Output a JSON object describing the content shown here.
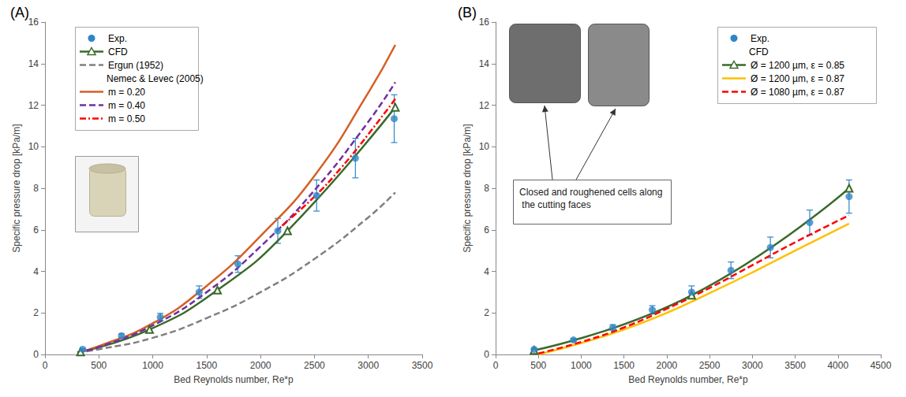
{
  "chart_data": [
    {
      "type": "line",
      "title": "(A)",
      "x_label": "Bed Reynolds number, Re*p",
      "y_label": "Specific pressure drop [kPa/m]",
      "xlim": [
        0,
        3500
      ],
      "xticks": [
        0,
        500,
        1000,
        1500,
        2000,
        2500,
        3000,
        3500
      ],
      "ylim": [
        0,
        16
      ],
      "yticks": [
        0,
        2,
        4,
        6,
        8,
        10,
        12,
        14,
        16
      ],
      "grid": false,
      "legend": "upper left",
      "series": [
        {
          "name": "Exp.",
          "type": "scatter",
          "color": "#2e86c8",
          "marker": "circle",
          "x": [
            350,
            710,
            1070,
            1430,
            1790,
            2160,
            2520,
            2880,
            3240
          ],
          "values": [
            0.25,
            0.9,
            1.8,
            3.0,
            4.35,
            5.95,
            7.65,
            9.45,
            11.35
          ],
          "errors": [
            0.03,
            0.09,
            0.18,
            0.3,
            0.4,
            0.6,
            0.75,
            0.95,
            1.15
          ]
        },
        {
          "name": "CFD",
          "type": "line",
          "color": "#3b6a2b",
          "marker": "open_triangle",
          "line_style": "solid",
          "x": [
            330,
            970,
            1600,
            2250,
            3250
          ],
          "values": [
            0.12,
            1.2,
            3.1,
            5.95,
            11.9
          ]
        },
        {
          "name": "Ergun (1952)",
          "type": "line",
          "color": "#808080",
          "marker": "none",
          "line_style": "dashed",
          "x": [
            300,
            500,
            1000,
            1500,
            2000,
            2500,
            3000,
            3250
          ],
          "values": [
            0.1,
            0.25,
            0.8,
            1.75,
            3.0,
            4.6,
            6.6,
            7.8
          ]
        },
        {
          "name": "m = 0.20",
          "legend_group": "Nemec & Levec (2005)",
          "type": "line",
          "color": "#d45f26",
          "marker": "none",
          "line_style": "solid",
          "x": [
            300,
            500,
            1000,
            1500,
            2000,
            2500,
            3000,
            3250
          ],
          "values": [
            0.1,
            0.4,
            1.5,
            3.3,
            5.7,
            8.6,
            12.6,
            14.9
          ]
        },
        {
          "name": "m = 0.40",
          "legend_group": "Nemec & Levec (2005)",
          "type": "line",
          "color": "#7030a0",
          "marker": "none",
          "line_style": "dashed",
          "x": [
            300,
            500,
            1000,
            1500,
            2000,
            2500,
            3000,
            3250
          ],
          "values": [
            0.1,
            0.35,
            1.4,
            3.0,
            5.2,
            7.9,
            11.2,
            13.1
          ]
        },
        {
          "name": "m = 0.50",
          "legend_group": "Nemec & Levec (2005)",
          "type": "line",
          "color": "#ff0000",
          "marker": "none",
          "line_style": "dashdot",
          "x": [
            2200,
            2500,
            2750,
            3000,
            3250
          ],
          "values": [
            6.2,
            7.6,
            9.0,
            10.6,
            12.3
          ]
        }
      ]
    },
    {
      "type": "line",
      "title": "(B)",
      "x_label": "Bed Reynolds number, Re*p",
      "y_label": "Specific pressure drop [kPa/m]",
      "xlim": [
        0,
        4500
      ],
      "xticks": [
        0,
        500,
        1000,
        1500,
        2000,
        2500,
        3000,
        3500,
        4000,
        4500
      ],
      "ylim": [
        0,
        16
      ],
      "yticks": [
        0,
        2,
        4,
        6,
        8,
        10,
        12,
        14,
        16
      ],
      "grid": false,
      "legend": "upper right",
      "annotations": [
        "Closed and roughened cells along the cutting faces"
      ],
      "series": [
        {
          "name": "Exp.",
          "type": "scatter",
          "color": "#2e86c8",
          "marker": "circle",
          "x": [
            450,
            910,
            1370,
            1830,
            2290,
            2750,
            3210,
            3670,
            4130
          ],
          "values": [
            0.25,
            0.7,
            1.3,
            2.15,
            3.0,
            4.05,
            5.15,
            6.35,
            7.6
          ],
          "errors": [
            0.02,
            0.07,
            0.13,
            0.2,
            0.3,
            0.4,
            0.5,
            0.6,
            0.8
          ]
        },
        {
          "name": "Ø = 1200 µm, ε = 0.85",
          "legend_group": "CFD",
          "type": "line",
          "color": "#3b6a2b",
          "marker": "open_triangle",
          "line_style": "solid",
          "x": [
            450,
            2290,
            4130
          ],
          "values": [
            0.2,
            2.85,
            8.0
          ]
        },
        {
          "name": "Ø = 1200 µm, ε = 0.87",
          "legend_group": "CFD",
          "type": "line",
          "color": "#ffc000",
          "marker": "none",
          "line_style": "solid",
          "x": [
            500,
            1000,
            1500,
            2000,
            2500,
            3000,
            3500,
            4130
          ],
          "values": [
            0.0,
            0.55,
            1.2,
            2.0,
            2.95,
            3.95,
            5.0,
            6.3
          ]
        },
        {
          "name": "Ø = 1080 µm, ε = 0.87",
          "legend_group": "CFD",
          "type": "line",
          "color": "#ff0000",
          "marker": "none",
          "line_style": "dashed",
          "x": [
            500,
            1000,
            1500,
            2000,
            2500,
            3000,
            3500,
            4130
          ],
          "values": [
            0.05,
            0.6,
            1.3,
            2.2,
            3.2,
            4.3,
            5.4,
            6.7
          ]
        }
      ]
    }
  ]
}
